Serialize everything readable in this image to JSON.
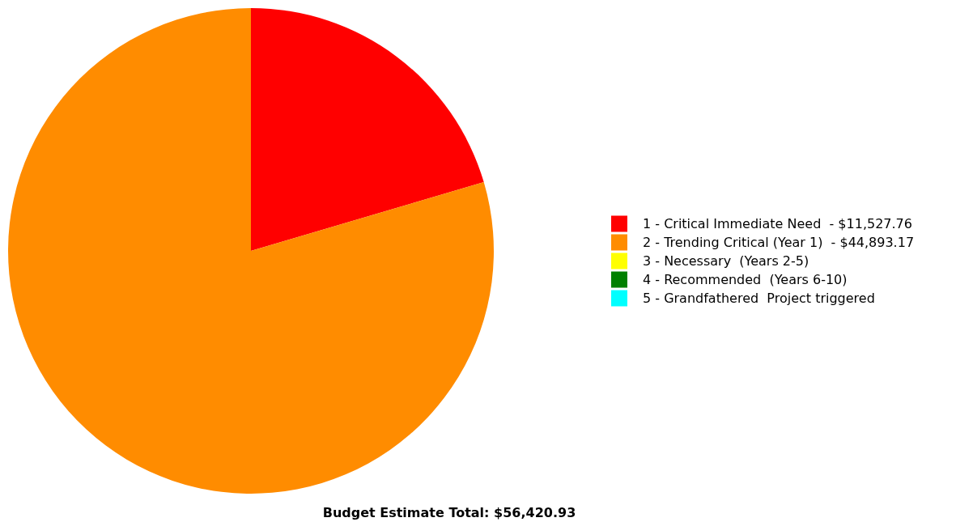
{
  "chart_data": {
    "type": "pie",
    "title": "Budget Estimate Total: $56,420.93",
    "categories": [
      "1 - Critical Immediate Need  - $11,527.76",
      "2 - Trending Critical (Year 1)  - $44,893.17",
      "3 - Necessary  (Years 2-5)",
      "4 - Recommended  (Years 6-10)",
      "5 - Grandfathered  Project triggered"
    ],
    "values": [
      20.43,
      79.57,
      0,
      0,
      0
    ],
    "colors": [
      "#ff0000",
      "#ff8c00",
      "#ffff00",
      "#008000",
      "#00ffff"
    ],
    "legend": "right"
  }
}
